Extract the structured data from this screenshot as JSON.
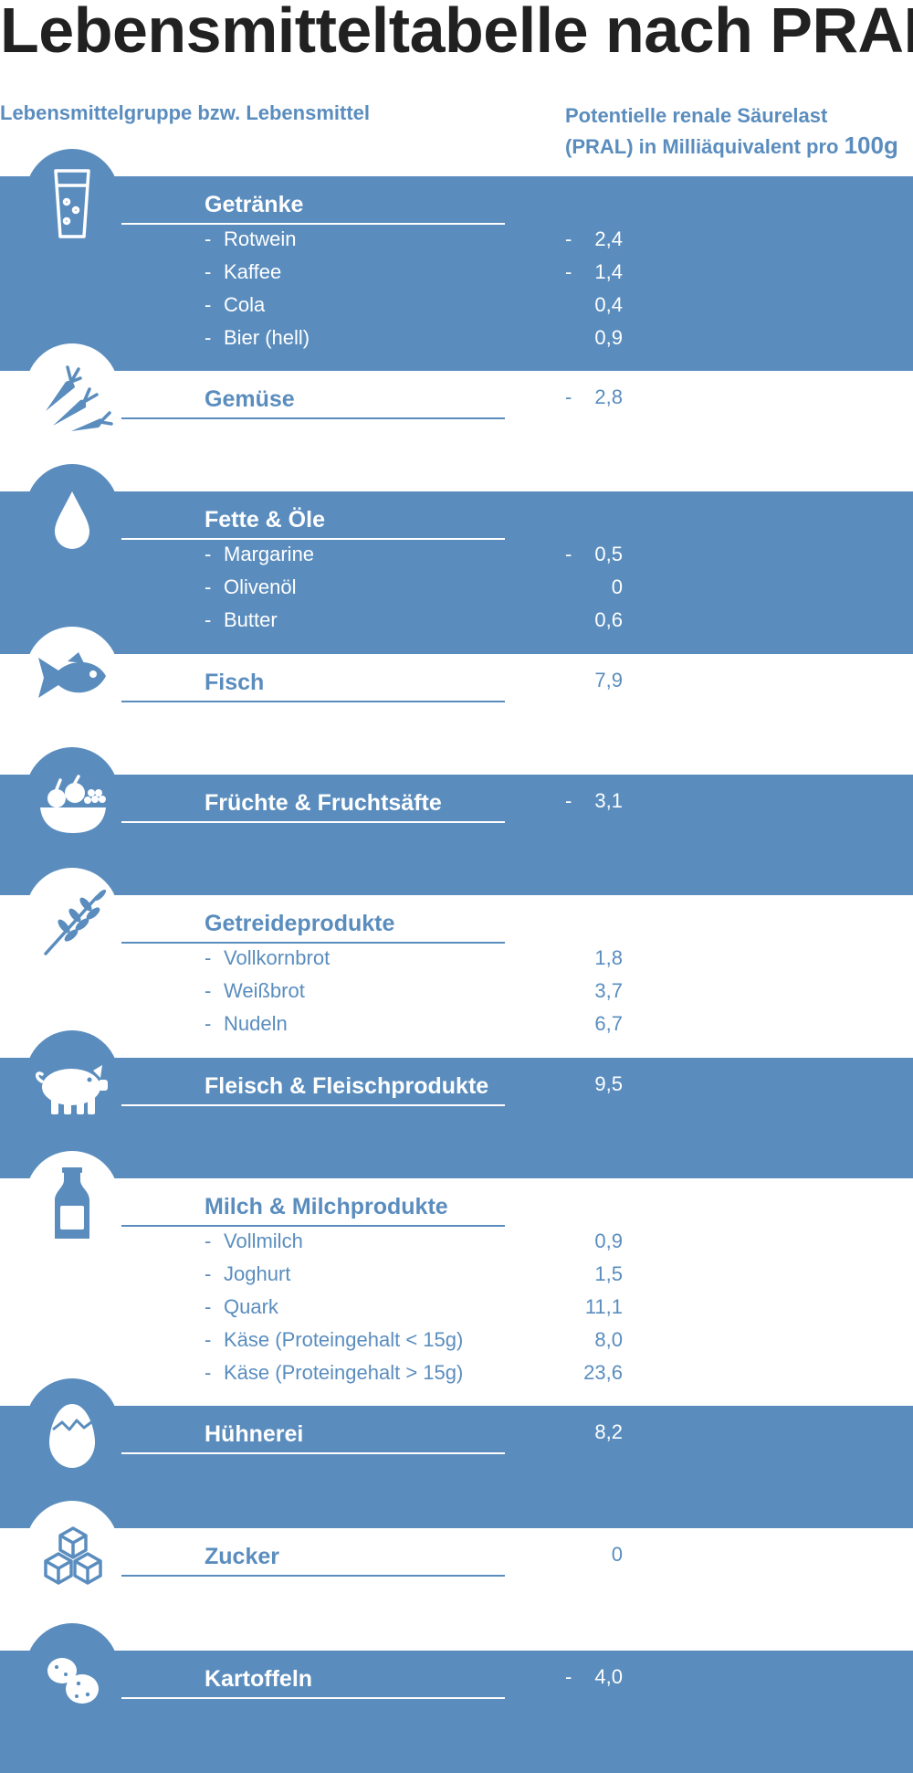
{
  "title": "Lebensmitteltabelle nach PRAL",
  "header": {
    "left": "Lebensmittelgruppe bzw. Lebensmittel",
    "right_line1": "Potentielle renale Säurelast",
    "right_line2": "(PRAL) in Milliäquivalent pro ",
    "right_unit": "100g"
  },
  "colors": {
    "accent": "#5a8dbe",
    "title": "#212121",
    "background": "#ffffff"
  },
  "sections": [
    {
      "name": "Getränke",
      "icon": "glass-icon",
      "value": "",
      "neg": "",
      "items": [
        {
          "label": "Rotwein",
          "neg": "-",
          "value": "2,4"
        },
        {
          "label": "Kaffee",
          "neg": "-",
          "value": "1,4"
        },
        {
          "label": "Cola",
          "neg": "",
          "value": "0,4"
        },
        {
          "label": "Bier (hell)",
          "neg": "",
          "value": "0,9"
        }
      ]
    },
    {
      "name": "Gemüse",
      "icon": "carrot-icon",
      "value": "2,8",
      "neg": "-",
      "items": []
    },
    {
      "name": "Fette & Öle",
      "icon": "drop-icon",
      "value": "",
      "neg": "",
      "items": [
        {
          "label": "Margarine",
          "neg": "-",
          "value": "0,5"
        },
        {
          "label": "Olivenöl",
          "neg": "",
          "value": "0"
        },
        {
          "label": "Butter",
          "neg": "",
          "value": "0,6"
        }
      ]
    },
    {
      "name": "Fisch",
      "icon": "fish-icon",
      "value": "7,9",
      "neg": "",
      "items": []
    },
    {
      "name": "Früchte & Fruchtsäfte",
      "icon": "fruit-bowl-icon",
      "value": "3,1",
      "neg": "-",
      "items": []
    },
    {
      "name": "Getreideprodukte",
      "icon": "wheat-icon",
      "value": "",
      "neg": "",
      "items": [
        {
          "label": "Vollkornbrot",
          "neg": "",
          "value": "1,8"
        },
        {
          "label": "Weißbrot",
          "neg": "",
          "value": "3,7"
        },
        {
          "label": "Nudeln",
          "neg": "",
          "value": "6,7"
        }
      ]
    },
    {
      "name": "Fleisch & Fleischprodukte",
      "icon": "pig-icon",
      "value": "9,5",
      "neg": "",
      "items": []
    },
    {
      "name": "Milch & Milchprodukte",
      "icon": "milk-bottle-icon",
      "value": "",
      "neg": "",
      "items": [
        {
          "label": "Vollmilch",
          "neg": "",
          "value": "0,9"
        },
        {
          "label": "Joghurt",
          "neg": "",
          "value": "1,5"
        },
        {
          "label": "Quark",
          "neg": "",
          "value": "11,1"
        },
        {
          "label": "Käse (Proteingehalt < 15g)",
          "neg": "",
          "value": "8,0"
        },
        {
          "label": "Käse (Proteingehalt > 15g)",
          "neg": "",
          "value": "23,6"
        }
      ]
    },
    {
      "name": "Hühnerei",
      "icon": "egg-icon",
      "value": "8,2",
      "neg": "",
      "items": []
    },
    {
      "name": "Zucker",
      "icon": "sugar-cubes-icon",
      "value": "0",
      "neg": "",
      "items": []
    },
    {
      "name": "Kartoffeln",
      "icon": "potato-icon",
      "value": "4,0",
      "neg": "-",
      "items": []
    }
  ]
}
